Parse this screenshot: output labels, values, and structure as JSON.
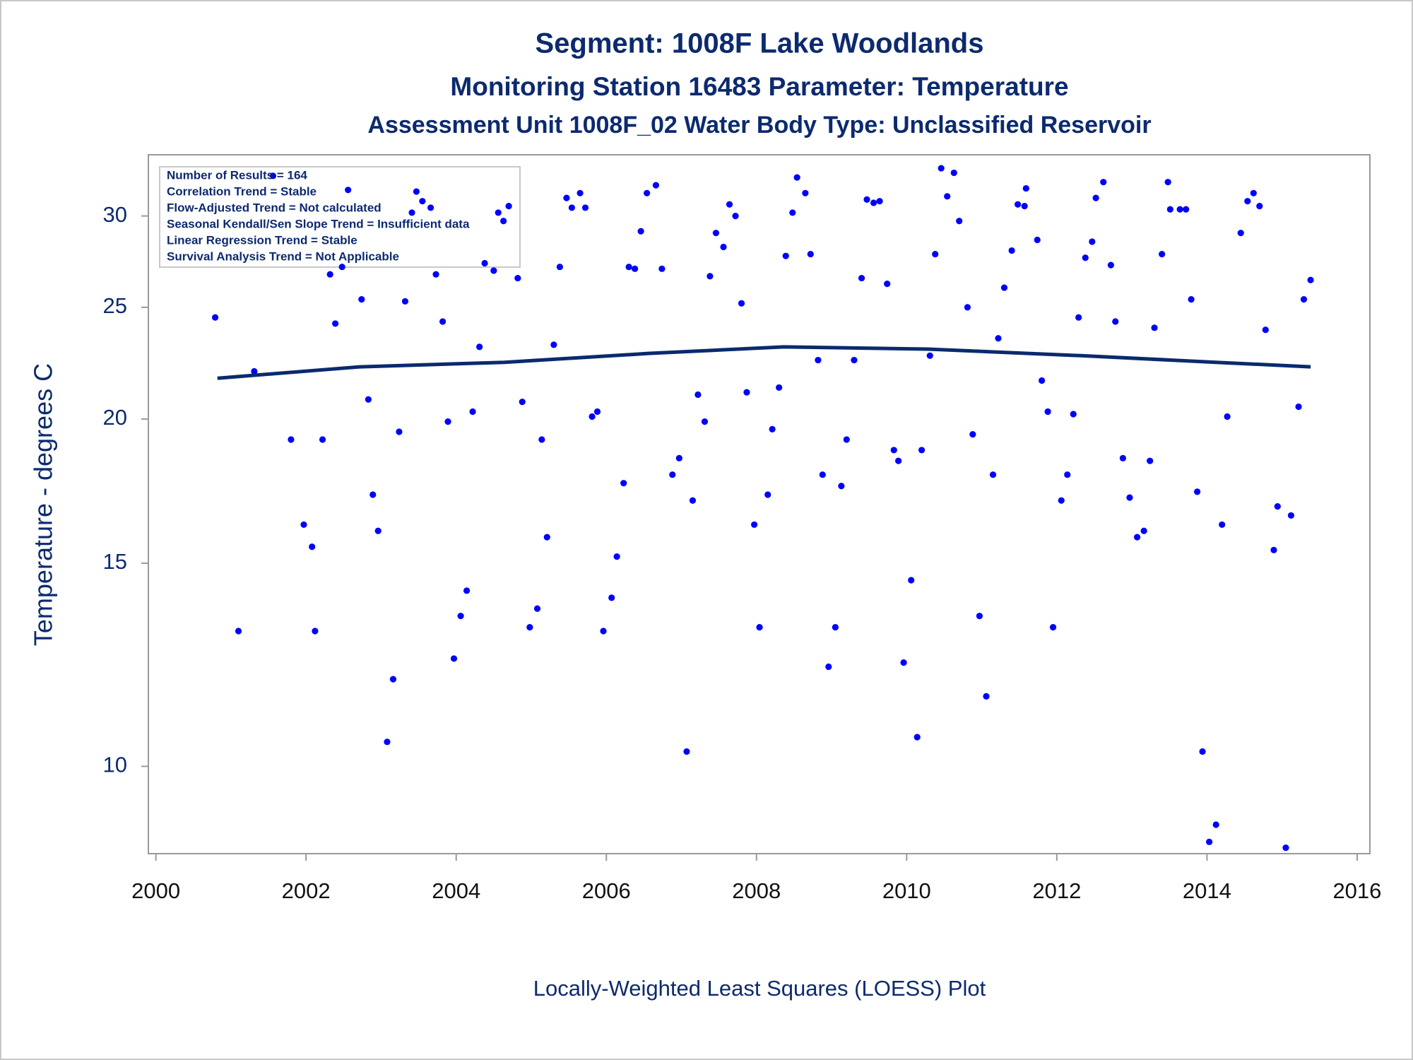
{
  "chart_data": {
    "type": "scatter",
    "title": "Segment: 1008F  Lake Woodlands",
    "subtitle": "Monitoring Station 16483 Parameter: Temperature",
    "subtitle2": "Assessment Unit 1008F_02   Water Body Type: Unclassified Reservoir",
    "y_label": "Temperature - degrees C",
    "footnote": "Locally-Weighted Least Squares (LOESS) Plot",
    "annotations": [
      "Number of Results = 164",
      "Correlation Trend = Stable",
      "Flow-Adjusted Trend = Not calculated",
      "Seasonal Kendall/Sen Slope Trend = Insufficient data",
      "Linear Regression Trend = Stable",
      "Survival Analysis Trend = Not Applicable"
    ],
    "xlim": [
      1999.9,
      2016.17
    ],
    "xticks": [
      2000,
      2002,
      2004,
      2006,
      2008,
      2010,
      2012,
      2014,
      2016
    ],
    "ylim": [
      8.4,
      33.9
    ],
    "yticks": [
      10,
      15,
      20,
      25,
      30
    ],
    "log_y": true,
    "grid": false,
    "series": [
      {
        "type": "scatter",
        "color": "#0000ff",
        "x": [
          2000.79,
          2001.1,
          2001.31,
          2001.56,
          2001.8,
          2001.97,
          2002.08,
          2002.12,
          2002.22,
          2002.32,
          2002.39,
          2002.48,
          2002.56,
          2002.74,
          2002.83,
          2002.89,
          2002.96,
          2003.08,
          2003.16,
          2003.24,
          2003.32,
          2003.41,
          2003.47,
          2003.55,
          2003.66,
          2003.73,
          2003.82,
          2003.89,
          2003.97,
          2004.06,
          2004.14,
          2004.22,
          2004.31,
          2004.38,
          2004.5,
          2004.56,
          2004.63,
          2004.7,
          2004.82,
          2004.88,
          2004.98,
          2005.08,
          2005.14,
          2005.21,
          2005.3,
          2005.38,
          2005.47,
          2005.54,
          2005.65,
          2005.72,
          2005.81,
          2005.88,
          2005.96,
          2006.07,
          2006.14,
          2006.23,
          2006.3,
          2006.38,
          2006.46,
          2006.54,
          2006.66,
          2006.74,
          2006.88,
          2006.97,
          2007.07,
          2007.15,
          2007.22,
          2007.31,
          2007.38,
          2007.46,
          2007.56,
          2007.64,
          2007.72,
          2007.8,
          2007.87,
          2007.97,
          2008.04,
          2008.15,
          2008.21,
          2008.3,
          2008.39,
          2008.48,
          2008.54,
          2008.65,
          2008.72,
          2008.82,
          2008.88,
          2008.96,
          2009.05,
          2009.13,
          2009.2,
          2009.3,
          2009.4,
          2009.47,
          2009.56,
          2009.64,
          2009.74,
          2009.83,
          2009.89,
          2009.96,
          2010.06,
          2010.14,
          2010.2,
          2010.31,
          2010.38,
          2010.46,
          2010.54,
          2010.63,
          2010.7,
          2010.81,
          2010.88,
          2010.97,
          2011.06,
          2011.15,
          2011.22,
          2011.3,
          2011.4,
          2011.48,
          2011.57,
          2011.59,
          2011.74,
          2011.8,
          2011.88,
          2011.95,
          2012.06,
          2012.14,
          2012.22,
          2012.29,
          2012.38,
          2012.47,
          2012.52,
          2012.62,
          2012.72,
          2012.78,
          2012.88,
          2012.97,
          2013.07,
          2013.16,
          2013.24,
          2013.3,
          2013.4,
          2013.48,
          2013.51,
          2013.64,
          2013.72,
          2013.79,
          2013.87,
          2013.94,
          2014.03,
          2014.12,
          2014.2,
          2014.27,
          2014.45,
          2014.54,
          2014.62,
          2014.7,
          2014.78,
          2014.89,
          2014.94,
          2015.05,
          2015.12,
          2015.22,
          2015.29,
          2015.38
        ],
        "values": [
          24.5,
          13.1,
          22.0,
          32.5,
          19.2,
          16.2,
          15.5,
          13.1,
          19.2,
          26.7,
          24.2,
          27.1,
          31.6,
          25.4,
          20.8,
          17.2,
          16.0,
          10.5,
          11.9,
          19.5,
          25.3,
          30.2,
          31.5,
          30.9,
          30.5,
          26.7,
          24.3,
          19.9,
          12.4,
          13.5,
          14.2,
          20.3,
          23.1,
          27.3,
          26.9,
          30.2,
          29.7,
          30.6,
          26.5,
          20.7,
          13.2,
          13.7,
          19.2,
          15.8,
          23.2,
          27.1,
          31.1,
          30.5,
          31.4,
          30.5,
          20.1,
          20.3,
          13.1,
          14.0,
          15.2,
          17.6,
          27.1,
          27.0,
          29.1,
          31.4,
          31.9,
          27.0,
          17.9,
          18.5,
          10.3,
          17.0,
          21.0,
          19.9,
          26.6,
          29.0,
          28.2,
          30.7,
          30.0,
          25.2,
          21.1,
          16.2,
          13.2,
          17.2,
          19.6,
          21.3,
          27.7,
          30.2,
          32.4,
          31.4,
          27.8,
          22.5,
          17.9,
          12.2,
          13.2,
          17.5,
          19.2,
          22.5,
          26.5,
          31.0,
          30.8,
          30.9,
          26.2,
          18.8,
          18.4,
          12.3,
          14.5,
          10.6,
          18.8,
          22.7,
          27.8,
          33.0,
          31.2,
          32.7,
          29.7,
          25.0,
          19.4,
          13.5,
          11.5,
          17.9,
          23.5,
          26.0,
          28.0,
          30.7,
          30.6,
          31.7,
          28.6,
          21.6,
          20.3,
          13.2,
          17.0,
          17.9,
          20.2,
          24.5,
          27.6,
          28.5,
          31.1,
          32.1,
          27.2,
          24.3,
          18.5,
          17.1,
          15.8,
          16.0,
          18.4,
          24.0,
          27.8,
          32.1,
          30.4,
          30.4,
          30.4,
          25.4,
          17.3,
          10.3,
          8.6,
          8.9,
          16.2,
          20.1,
          29.0,
          30.9,
          31.4,
          30.6,
          23.9,
          15.4,
          16.8,
          8.5,
          16.5,
          20.5,
          25.4,
          26.4
        ]
      },
      {
        "type": "line",
        "color": "#0a2a6e",
        "x": [
          2000.82,
          2002.72,
          2004.64,
          2006.56,
          2008.36,
          2010.28,
          2012.32,
          2014.12,
          2015.38
        ],
        "values": [
          21.7,
          22.2,
          22.4,
          22.8,
          23.1,
          23.0,
          22.7,
          22.4,
          22.2
        ]
      }
    ]
  }
}
